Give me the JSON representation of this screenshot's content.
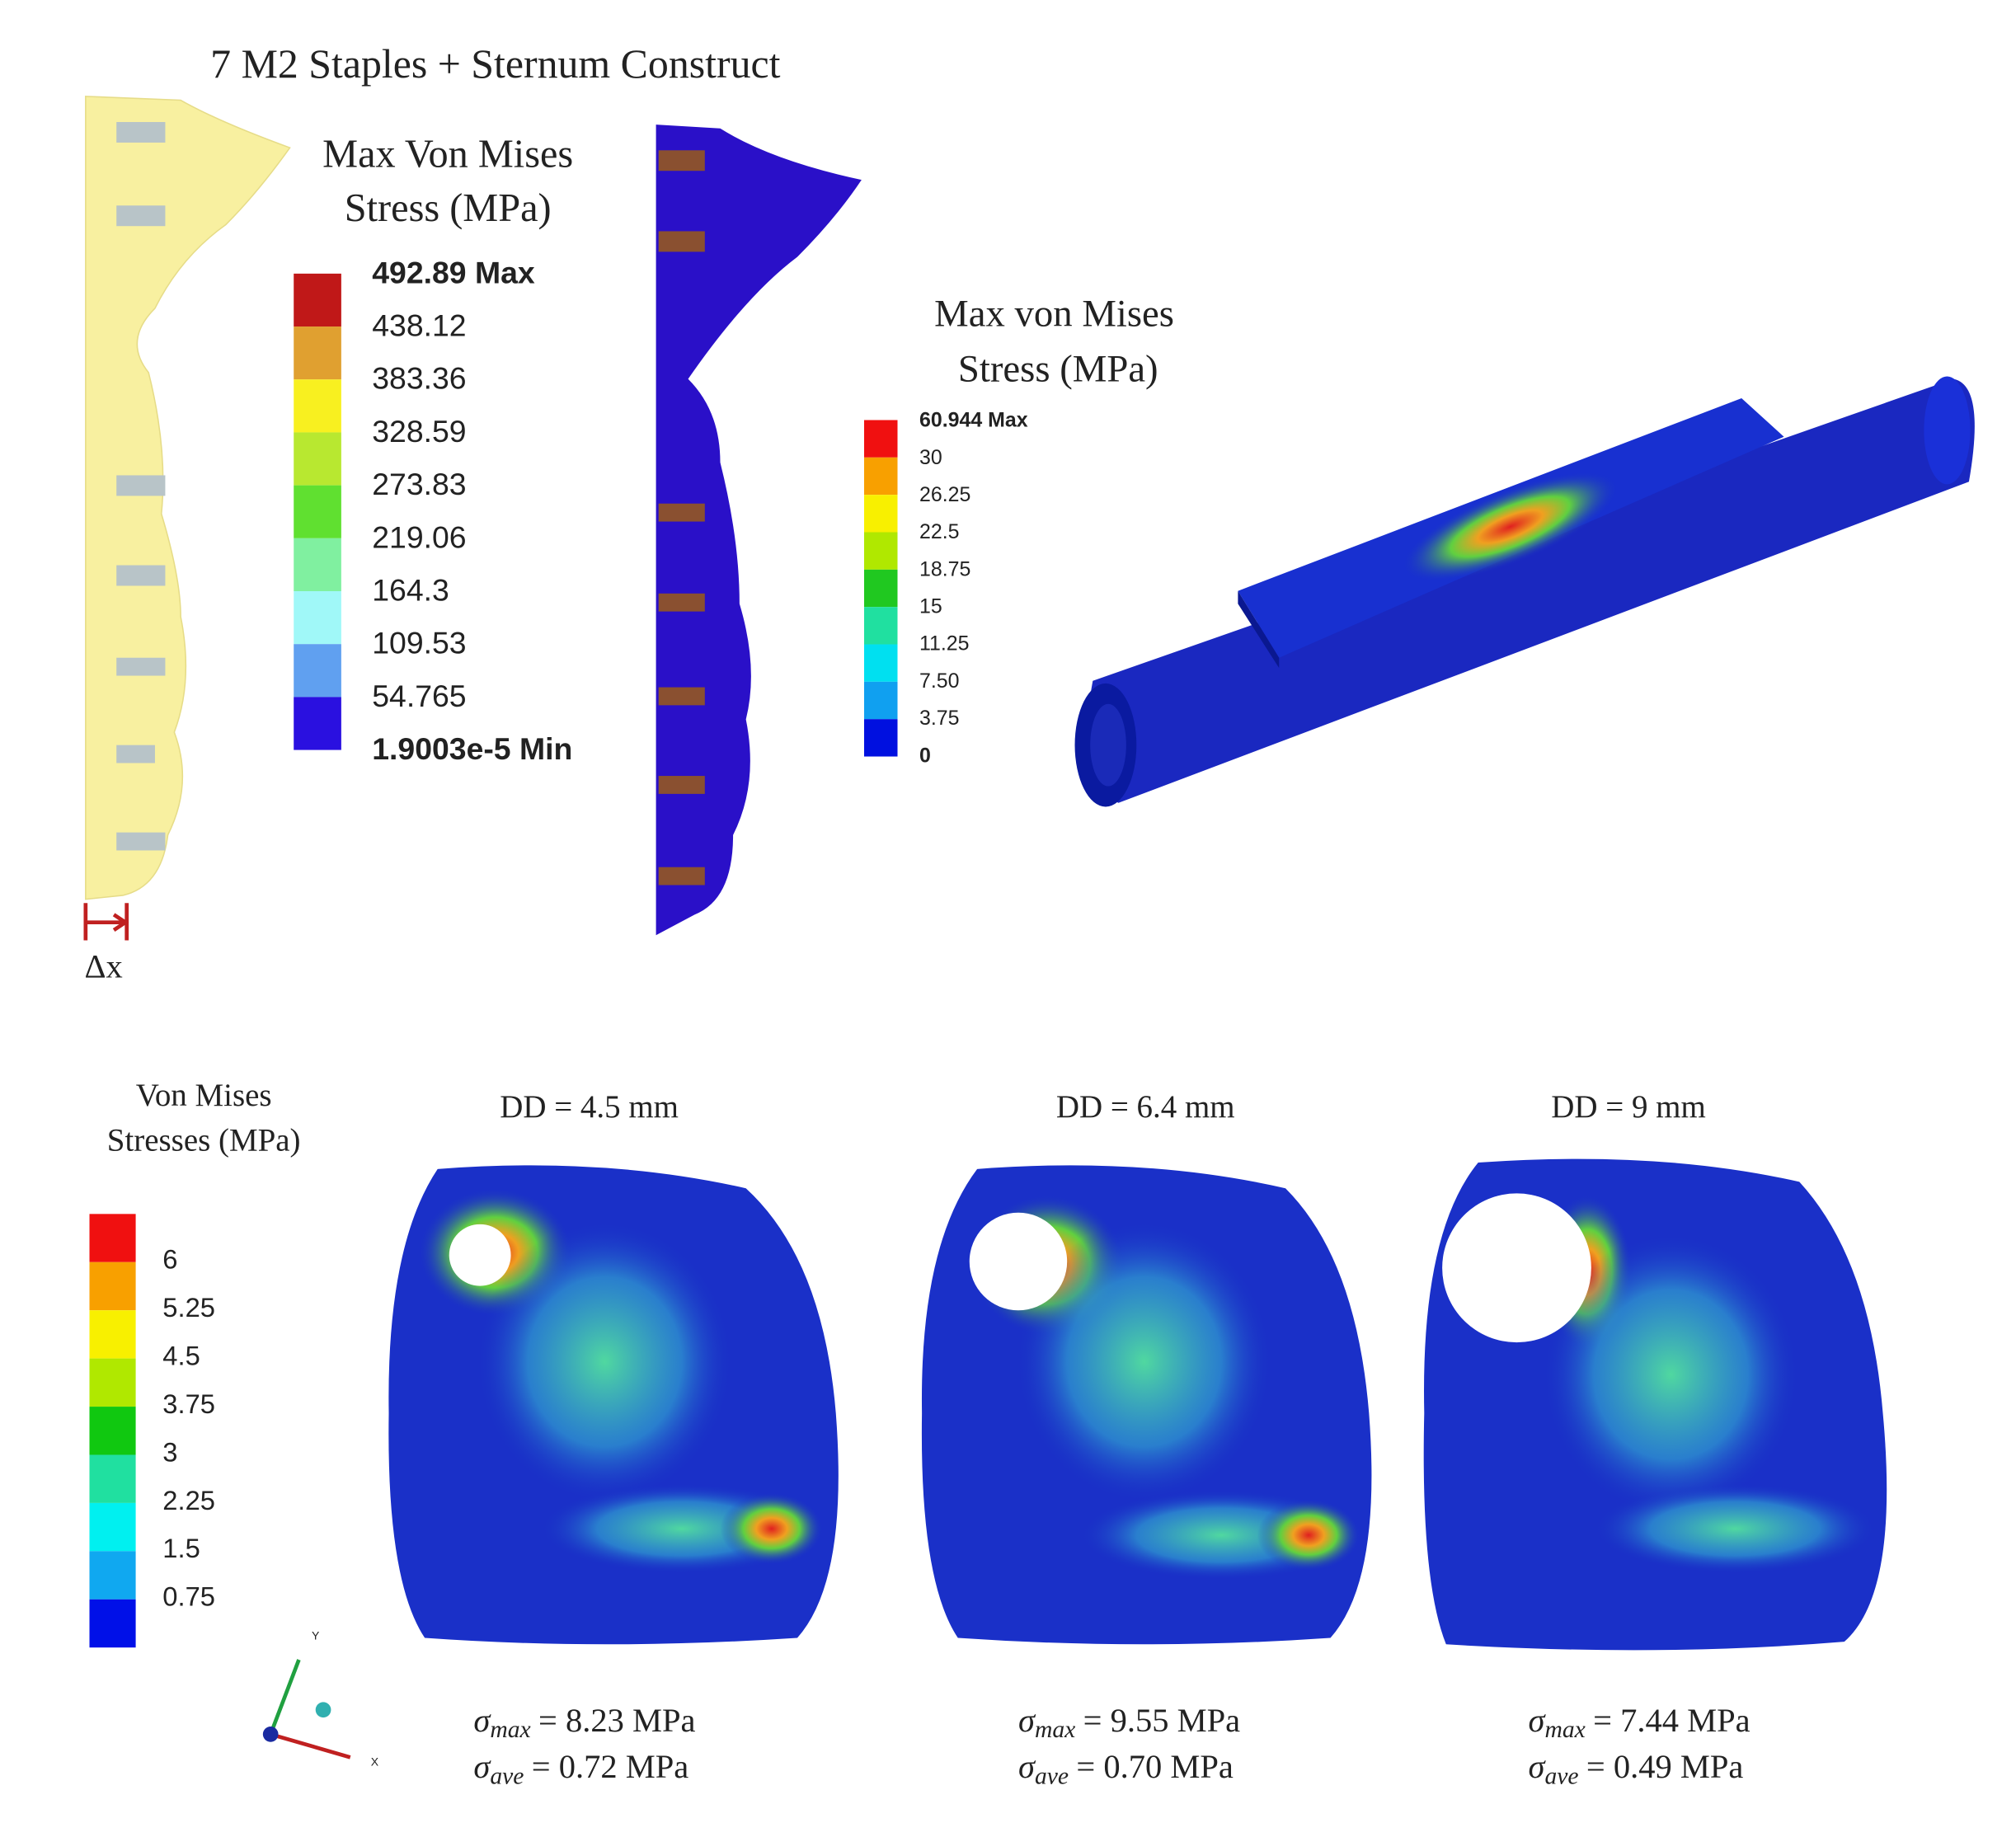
{
  "panel_a": {
    "title": "7 M2 Staples + Sternum Construct",
    "legend_title": [
      "Max Von Mises",
      "Stress (MPa)"
    ],
    "legend_labels": [
      "492.89 Max",
      "438.12",
      "383.36",
      "328.59",
      "273.83",
      "219.06",
      "164.3",
      "109.53",
      "54.765",
      "1.9003e-5 Min"
    ],
    "delta_label": "Δx"
  },
  "panel_b": {
    "legend_title": [
      "Max von Mises",
      "Stress (MPa)"
    ],
    "legend_labels": [
      "60.944 Max",
      "30",
      "26.25",
      "22.5",
      "18.75",
      "15",
      "11.25",
      "7.50",
      "3.75",
      "0"
    ]
  },
  "panel_c": {
    "legend_title": [
      "Von Mises",
      "Stresses (MPa)"
    ],
    "legend_labels": [
      "6",
      "5.25",
      "4.5",
      "3.75",
      "3",
      "2.25",
      "1.5",
      "0.75"
    ],
    "axis_labels": [
      "Y",
      "X"
    ],
    "cases": [
      {
        "title": "DD = 4.5 mm",
        "max_symbol": "σ",
        "max_sub": "max",
        "max_value": "= 8.23 MPa",
        "ave_symbol": "σ",
        "ave_sub": "ave",
        "ave_value": "=  0.72 MPa"
      },
      {
        "title": "DD = 6.4 mm",
        "max_symbol": "σ",
        "max_sub": "max",
        "max_value": "= 9.55 MPa",
        "ave_symbol": "σ",
        "ave_sub": "ave",
        "ave_value": "=  0.70 MPa"
      },
      {
        "title": "DD = 9 mm",
        "max_symbol": "σ",
        "max_sub": "max",
        "max_value": "= 7.44 MPa",
        "ave_symbol": "σ",
        "ave_sub": "ave",
        "ave_value": "=  0.49 MPa"
      }
    ]
  }
}
